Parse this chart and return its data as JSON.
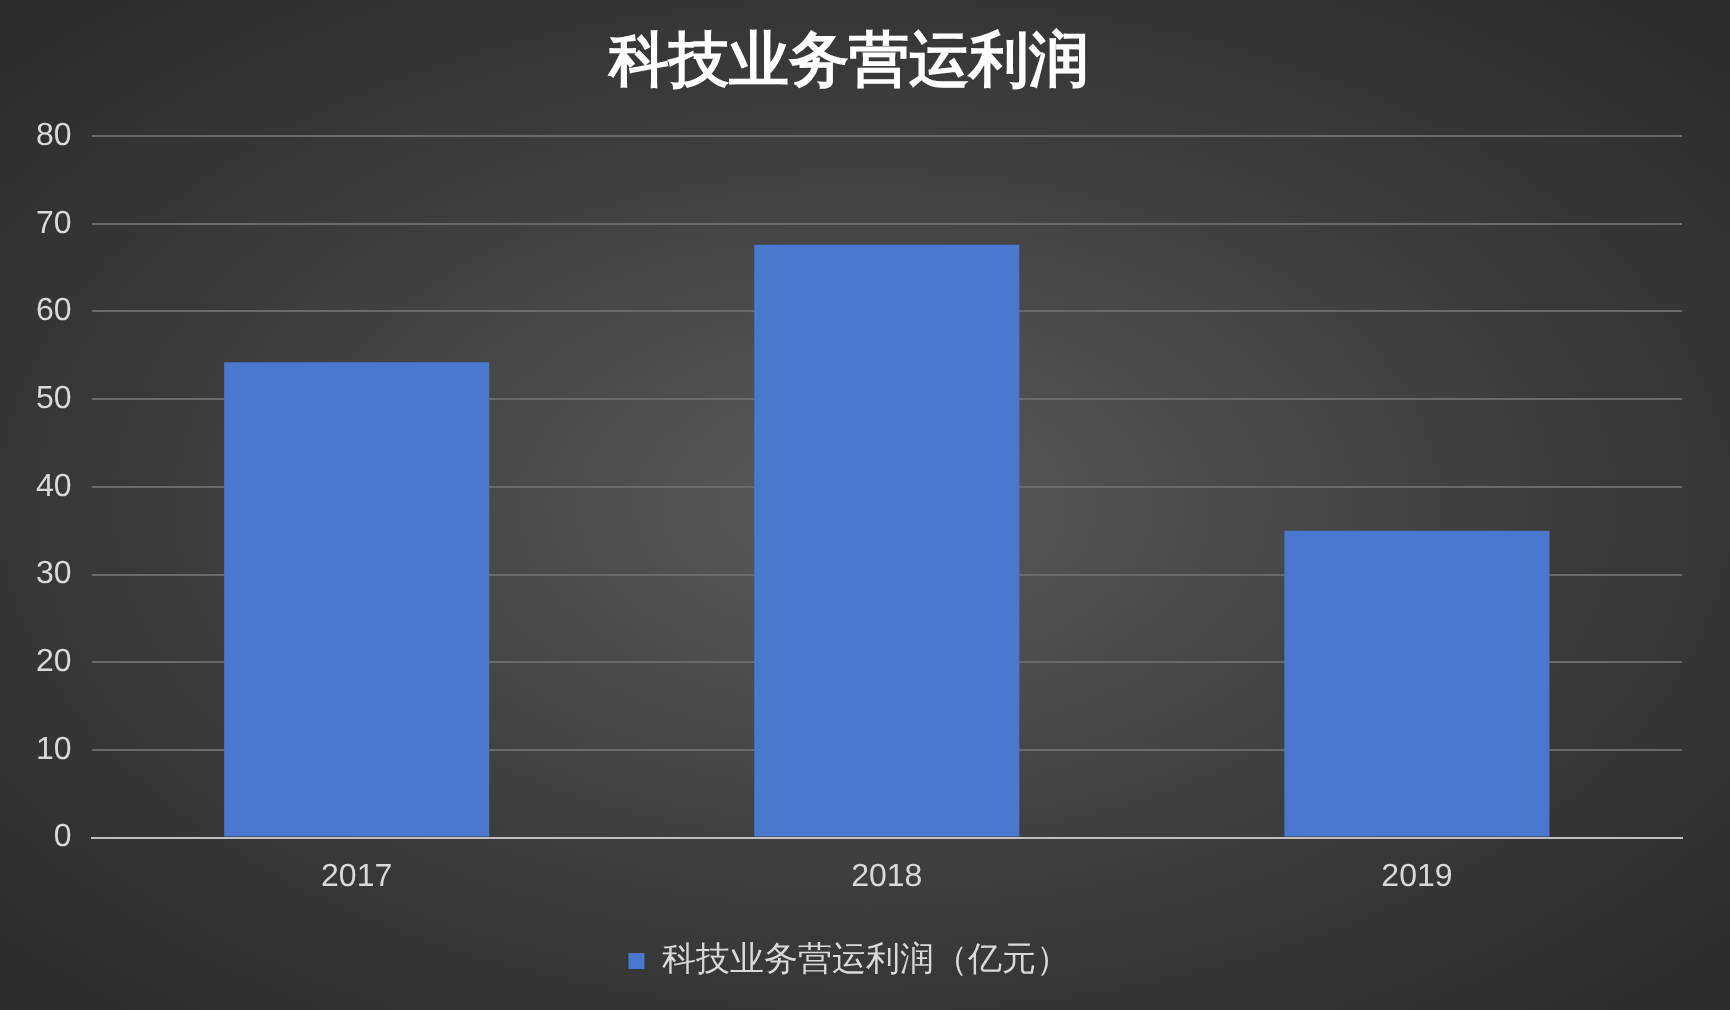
{
  "chart_data": {
    "type": "bar",
    "title": "科技业务营运利润",
    "categories": [
      "2017",
      "2018",
      "2019"
    ],
    "series": [
      {
        "name": "科技业务营运利润（亿元）",
        "color": "#4a78cf",
        "values": [
          54.2,
          67.6,
          35.0
        ]
      }
    ],
    "ylim": [
      0,
      80
    ],
    "yticks": [
      0,
      10,
      20,
      30,
      40,
      50,
      60,
      70,
      80
    ],
    "grid": "y",
    "legend": "bottom"
  }
}
